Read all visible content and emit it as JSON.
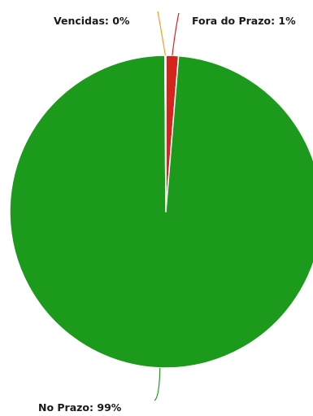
{
  "chart_data": {
    "type": "pie",
    "title": "",
    "slices": [
      {
        "label": "No Prazo: 99%",
        "category": "No Prazo",
        "value": 98.6,
        "color": "#1b9a1b"
      },
      {
        "label": "Fora do Prazo: 1%",
        "category": "Fora do Prazo",
        "value": 1.3,
        "color": "#d4241c"
      },
      {
        "label": "Vencidas: 0%",
        "category": "Vencidas",
        "value": 0.1,
        "color": "#f2a11f"
      }
    ],
    "legend": "none",
    "label_style": "outside with leader lines"
  }
}
